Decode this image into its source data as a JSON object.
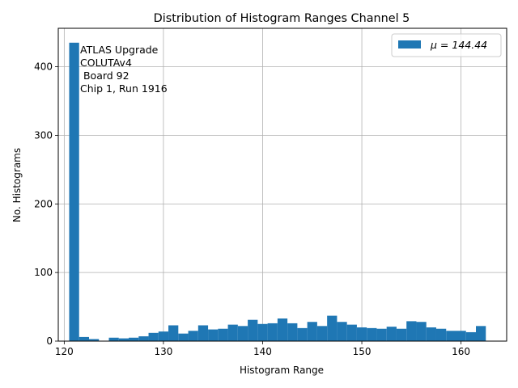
{
  "chart_data": {
    "type": "bar",
    "title": "Distribution of Histogram Ranges Channel 5",
    "xlabel": "Histogram Range",
    "ylabel": "No. Histograms",
    "xlim": [
      119.4,
      164.6
    ],
    "ylim": [
      0,
      456
    ],
    "x_ticks": [
      120,
      130,
      140,
      150,
      160
    ],
    "y_ticks": [
      0,
      100,
      200,
      300,
      400
    ],
    "grid": true,
    "legend_position": "top-right",
    "bar_color": "#1f77b4",
    "bin_width": 1,
    "series": [
      {
        "name": "μ = 144.44",
        "bin_starts": [
          120.5,
          121.5,
          122.5,
          123.5,
          124.5,
          125.5,
          126.5,
          127.5,
          128.5,
          129.5,
          130.5,
          131.5,
          132.5,
          133.5,
          134.5,
          135.5,
          136.5,
          137.5,
          138.5,
          139.5,
          140.5,
          141.5,
          142.5,
          143.5,
          144.5,
          145.5,
          146.5,
          147.5,
          148.5,
          149.5,
          150.5,
          151.5,
          152.5,
          153.5,
          154.5,
          155.5,
          156.5,
          157.5,
          158.5,
          159.5,
          160.5,
          161.5
        ],
        "values": [
          435,
          6,
          3,
          0,
          5,
          4,
          5,
          7,
          12,
          14,
          23,
          11,
          15,
          23,
          17,
          18,
          24,
          22,
          31,
          25,
          26,
          33,
          26,
          19,
          28,
          22,
          37,
          28,
          24,
          20,
          19,
          18,
          21,
          18,
          29,
          28,
          20,
          18,
          15,
          15,
          13,
          22
        ]
      }
    ],
    "annotation": [
      "ATLAS Upgrade",
      "COLUTAv4",
      " Board 92",
      "Chip 1, Run 1916"
    ]
  }
}
